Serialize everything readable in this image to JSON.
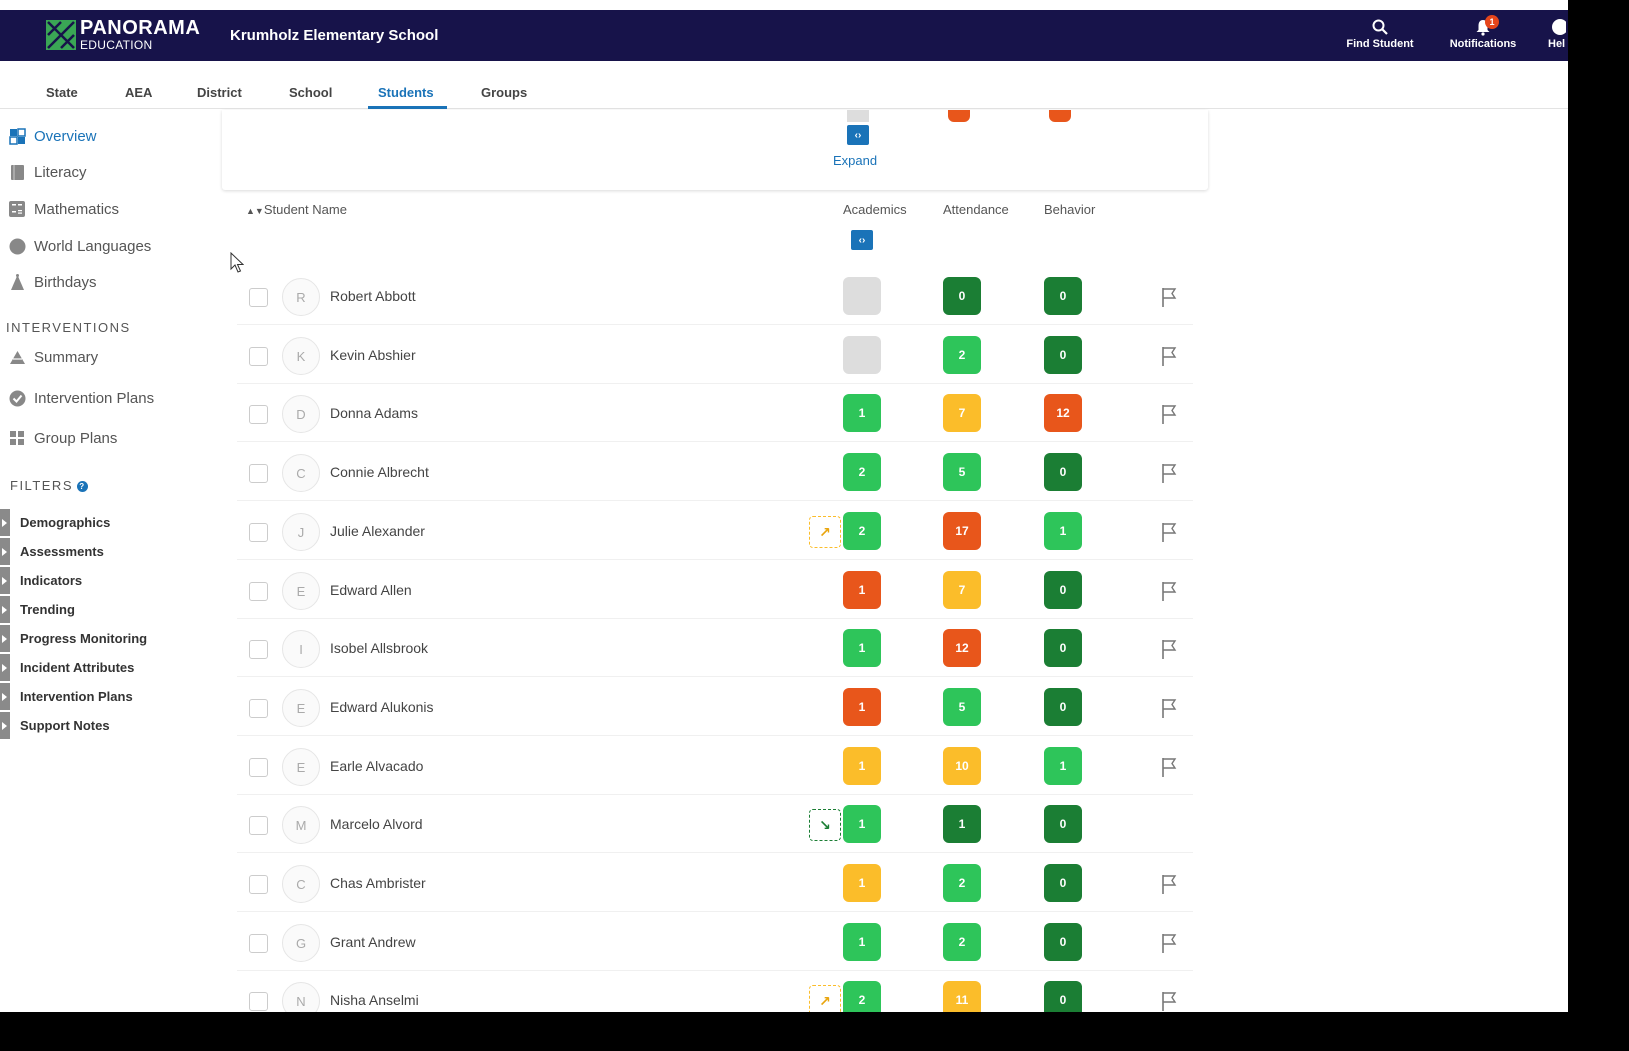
{
  "header": {
    "brand_main": "PANORAMA",
    "brand_sub": "EDUCATION",
    "school_name": "Krumholz Elementary School",
    "find_student": "Find Student",
    "notifications": "Notifications",
    "notification_count": "1",
    "help": "Hel"
  },
  "tabs": [
    {
      "label": "State"
    },
    {
      "label": "AEA"
    },
    {
      "label": "District"
    },
    {
      "label": "School"
    },
    {
      "label": "Students",
      "active": true
    },
    {
      "label": "Groups"
    }
  ],
  "sidebar": {
    "nav": [
      {
        "label": "Overview",
        "icon": "overview-icon",
        "active": true
      },
      {
        "label": "Literacy",
        "icon": "book-icon"
      },
      {
        "label": "Mathematics",
        "icon": "calculator-icon"
      },
      {
        "label": "World Languages",
        "icon": "globe-icon"
      },
      {
        "label": "Birthdays",
        "icon": "party-hat-icon"
      }
    ],
    "interventions_heading": "INTERVENTIONS",
    "interventions": [
      {
        "label": "Summary",
        "icon": "pyramid-icon"
      },
      {
        "label": "Intervention Plans",
        "icon": "check-circle-icon"
      },
      {
        "label": "Group Plans",
        "icon": "grid-icon"
      }
    ],
    "filters_heading": "FILTERS",
    "filters": [
      {
        "label": "Demographics"
      },
      {
        "label": "Assessments"
      },
      {
        "label": "Indicators"
      },
      {
        "label": "Trending"
      },
      {
        "label": "Progress Monitoring"
      },
      {
        "label": "Incident Attributes"
      },
      {
        "label": "Intervention Plans"
      },
      {
        "label": "Support Notes"
      }
    ]
  },
  "summary_card": {
    "expand_label": "Expand"
  },
  "table": {
    "columns": {
      "student_name": "Student Name",
      "academics": "Academics",
      "attendance": "Attendance",
      "behavior": "Behavior"
    },
    "colors": {
      "gray": "#dddddd",
      "dark_green": "#1b7e34",
      "green": "#2ec55a",
      "yellow": "#fbbd2a",
      "orange": "#e8561b"
    },
    "rows": [
      {
        "initial": "R",
        "name": "Robert Abbott",
        "academics": {
          "value": "",
          "color": "gray"
        },
        "attendance": {
          "value": "0",
          "color": "dark_green"
        },
        "behavior": {
          "value": "0",
          "color": "dark_green"
        },
        "trend": null,
        "flag": true
      },
      {
        "initial": "K",
        "name": "Kevin Abshier",
        "academics": {
          "value": "",
          "color": "gray"
        },
        "attendance": {
          "value": "2",
          "color": "green"
        },
        "behavior": {
          "value": "0",
          "color": "dark_green"
        },
        "trend": null,
        "flag": true
      },
      {
        "initial": "D",
        "name": "Donna Adams",
        "academics": {
          "value": "1",
          "color": "green"
        },
        "attendance": {
          "value": "7",
          "color": "yellow"
        },
        "behavior": {
          "value": "12",
          "color": "orange"
        },
        "trend": null,
        "flag": true
      },
      {
        "initial": "C",
        "name": "Connie Albrecht",
        "academics": {
          "value": "2",
          "color": "green"
        },
        "attendance": {
          "value": "5",
          "color": "green"
        },
        "behavior": {
          "value": "0",
          "color": "dark_green"
        },
        "trend": null,
        "flag": true
      },
      {
        "initial": "J",
        "name": "Julie Alexander",
        "academics": {
          "value": "2",
          "color": "green"
        },
        "attendance": {
          "value": "17",
          "color": "orange"
        },
        "behavior": {
          "value": "1",
          "color": "green"
        },
        "trend": "up",
        "flag": true
      },
      {
        "initial": "E",
        "name": "Edward Allen",
        "academics": {
          "value": "1",
          "color": "orange"
        },
        "attendance": {
          "value": "7",
          "color": "yellow"
        },
        "behavior": {
          "value": "0",
          "color": "dark_green"
        },
        "trend": null,
        "flag": true
      },
      {
        "initial": "I",
        "name": "Isobel Allsbrook",
        "academics": {
          "value": "1",
          "color": "green"
        },
        "attendance": {
          "value": "12",
          "color": "orange"
        },
        "behavior": {
          "value": "0",
          "color": "dark_green"
        },
        "trend": null,
        "flag": true
      },
      {
        "initial": "E",
        "name": "Edward Alukonis",
        "academics": {
          "value": "1",
          "color": "orange"
        },
        "attendance": {
          "value": "5",
          "color": "green"
        },
        "behavior": {
          "value": "0",
          "color": "dark_green"
        },
        "trend": null,
        "flag": true
      },
      {
        "initial": "E",
        "name": "Earle Alvacado",
        "academics": {
          "value": "1",
          "color": "yellow"
        },
        "attendance": {
          "value": "10",
          "color": "yellow"
        },
        "behavior": {
          "value": "1",
          "color": "green"
        },
        "trend": null,
        "flag": true
      },
      {
        "initial": "M",
        "name": "Marcelo Alvord",
        "academics": {
          "value": "1",
          "color": "green"
        },
        "attendance": {
          "value": "1",
          "color": "dark_green"
        },
        "behavior": {
          "value": "0",
          "color": "dark_green"
        },
        "trend": "down",
        "flag": false
      },
      {
        "initial": "C",
        "name": "Chas Ambrister",
        "academics": {
          "value": "1",
          "color": "yellow"
        },
        "attendance": {
          "value": "2",
          "color": "green"
        },
        "behavior": {
          "value": "0",
          "color": "dark_green"
        },
        "trend": null,
        "flag": true
      },
      {
        "initial": "G",
        "name": "Grant Andrew",
        "academics": {
          "value": "1",
          "color": "green"
        },
        "attendance": {
          "value": "2",
          "color": "green"
        },
        "behavior": {
          "value": "0",
          "color": "dark_green"
        },
        "trend": null,
        "flag": true
      },
      {
        "initial": "N",
        "name": "Nisha Anselmi",
        "academics": {
          "value": "2",
          "color": "green"
        },
        "attendance": {
          "value": "11",
          "color": "yellow"
        },
        "behavior": {
          "value": "0",
          "color": "dark_green"
        },
        "trend": "up",
        "flag": true
      }
    ]
  }
}
